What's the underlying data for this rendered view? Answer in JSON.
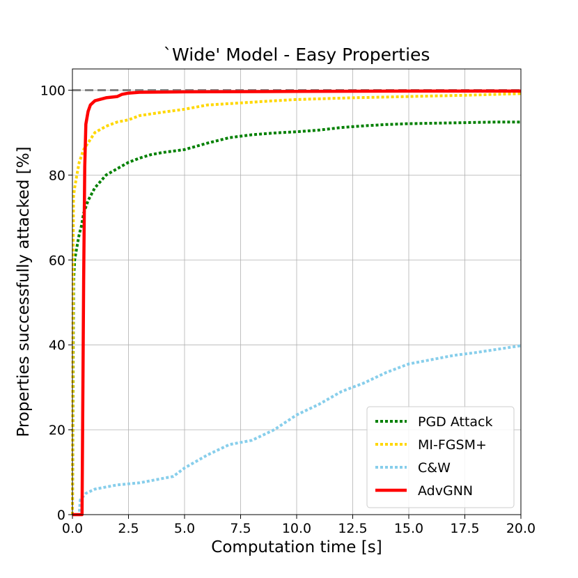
{
  "chart_data": {
    "type": "line",
    "title": "`Wide' Model - Easy Properties",
    "xlabel": "Computation time [s]",
    "ylabel": "Properties successfully attacked [%]",
    "xlim": [
      0,
      20
    ],
    "ylim": [
      0,
      105
    ],
    "xticks": [
      "0.0",
      "2.5",
      "5.0",
      "7.5",
      "10.0",
      "12.5",
      "15.0",
      "17.5",
      "20.0"
    ],
    "yticks": [
      "0",
      "20",
      "40",
      "60",
      "80",
      "100"
    ],
    "grid": true,
    "legend_position": "lower-right",
    "reference_line": {
      "y": 100,
      "color": "#808080",
      "style": "dashed"
    },
    "series": [
      {
        "name": "PGD Attack",
        "color": "#008000",
        "style": "dotted",
        "x": [
          0,
          0.05,
          0.1,
          0.2,
          0.3,
          0.4,
          0.5,
          0.7,
          1.0,
          1.5,
          2.0,
          2.5,
          3.0,
          3.5,
          4.0,
          5.0,
          6.0,
          7.0,
          8.0,
          9.0,
          10.0,
          11.0,
          12.0,
          13.0,
          14.0,
          15.0,
          16.0,
          17.0,
          18.0,
          19.0,
          20.0
        ],
        "y": [
          0,
          55,
          60,
          63,
          66,
          68,
          71,
          74,
          77,
          80,
          81.5,
          83,
          84,
          84.8,
          85.3,
          86,
          87.5,
          88.8,
          89.5,
          89.9,
          90.2,
          90.6,
          91.2,
          91.6,
          91.9,
          92.1,
          92.2,
          92.3,
          92.4,
          92.5,
          92.5
        ]
      },
      {
        "name": "MI-FGSM+",
        "color": "#FFD700",
        "style": "dotted",
        "x": [
          0,
          0.03,
          0.05,
          0.1,
          0.2,
          0.3,
          0.5,
          0.75,
          1.0,
          1.5,
          2.0,
          2.5,
          3.0,
          4.0,
          5.0,
          6.0,
          7.5,
          9.0,
          10.0,
          12.5,
          15.0,
          17.5,
          20.0
        ],
        "y": [
          0,
          60,
          75,
          77,
          80,
          83,
          86,
          88,
          90,
          91.5,
          92.5,
          93,
          94,
          94.8,
          95.5,
          96.5,
          97,
          97.5,
          97.8,
          98.2,
          98.5,
          98.8,
          99.2
        ]
      },
      {
        "name": "C&W",
        "color": "#87CEEB",
        "style": "dotted",
        "x": [
          0,
          0.3,
          0.35,
          0.6,
          1.0,
          2.0,
          3.0,
          4.5,
          5.0,
          6.0,
          7.0,
          8.0,
          9.0,
          10.0,
          11.0,
          12.0,
          13.0,
          14.0,
          15.0,
          16.0,
          17.0,
          18.0,
          19.0,
          20.0
        ],
        "y": [
          0,
          0,
          3.5,
          5,
          6,
          7,
          7.5,
          9,
          11,
          14,
          16.5,
          17.5,
          20,
          23.5,
          26,
          29,
          31,
          33.5,
          35.5,
          36.5,
          37.5,
          38.2,
          39,
          39.8
        ]
      },
      {
        "name": "AdvGNN",
        "color": "#FF0000",
        "style": "solid",
        "x": [
          0,
          0.43,
          0.5,
          0.55,
          0.6,
          0.7,
          0.8,
          1.0,
          1.5,
          2.0,
          2.2,
          2.5,
          3.0,
          5.0,
          10.0,
          15.0,
          20.0
        ],
        "y": [
          0,
          0,
          55,
          82,
          92,
          95,
          96.5,
          97.5,
          98.2,
          98.5,
          99,
          99.3,
          99.5,
          99.6,
          99.7,
          99.8,
          99.8
        ]
      }
    ]
  }
}
